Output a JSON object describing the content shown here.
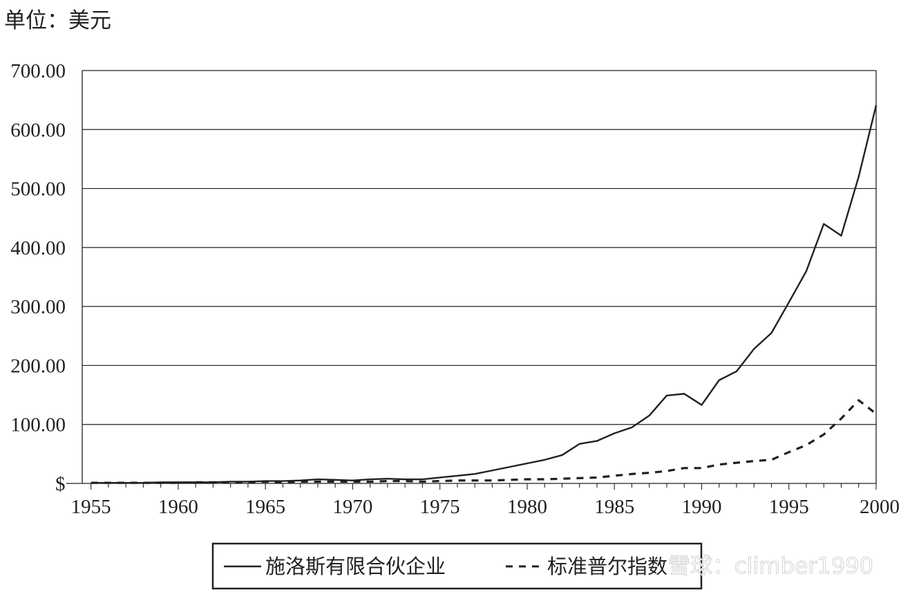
{
  "unit_label": "单位：美元",
  "watermark": "雪球：climber1990",
  "colors": {
    "ink": "#231f20",
    "grid": "#231f20",
    "background": "#ffffff"
  },
  "chart_data": {
    "type": "line",
    "title": "",
    "xlabel": "",
    "ylabel": "",
    "x": [
      1955,
      1956,
      1957,
      1958,
      1959,
      1960,
      1961,
      1962,
      1963,
      1964,
      1965,
      1966,
      1967,
      1968,
      1969,
      1970,
      1971,
      1972,
      1973,
      1974,
      1975,
      1976,
      1977,
      1978,
      1979,
      1980,
      1981,
      1982,
      1983,
      1984,
      1985,
      1986,
      1987,
      1988,
      1989,
      1990,
      1991,
      1992,
      1993,
      1994,
      1995,
      1996,
      1997,
      1998,
      1999,
      2000
    ],
    "xlim": [
      1954.5,
      2000
    ],
    "ylim": [
      0,
      700
    ],
    "yticks": [
      0,
      100,
      200,
      300,
      400,
      500,
      600,
      700
    ],
    "ytick_labels": [
      "$",
      "100.00",
      "200.00",
      "300.00",
      "400.00",
      "500.00",
      "600.00",
      "700.00"
    ],
    "xticks": [
      1955,
      1960,
      1965,
      1970,
      1975,
      1980,
      1985,
      1990,
      1995,
      2000
    ],
    "xtick_labels": [
      "1955",
      "1960",
      "1965",
      "1970",
      "1975",
      "1980",
      "1985",
      "1990",
      "1995",
      "2000"
    ],
    "grid": "horizontal",
    "legend_position": "bottom",
    "series": [
      {
        "name": "施洛斯有限合伙企业",
        "style": "solid",
        "values": [
          1,
          1,
          1,
          1,
          2,
          2,
          2,
          2,
          3,
          3,
          4,
          4,
          5,
          7,
          6,
          5,
          7,
          8,
          7,
          7,
          10,
          13,
          16,
          22,
          28,
          34,
          40,
          48,
          67,
          72,
          85,
          95,
          115,
          149,
          152,
          133,
          175,
          190,
          228,
          255,
          307,
          360,
          440,
          420,
          520,
          641
        ]
      },
      {
        "name": "标准普尔指数",
        "style": "dashed",
        "values": [
          1,
          1,
          1,
          1,
          1,
          1,
          2,
          2,
          2,
          2,
          3,
          2,
          3,
          3,
          3,
          3,
          3,
          4,
          4,
          3,
          4,
          5,
          5,
          5,
          6,
          7,
          7,
          8,
          9,
          10,
          13,
          16,
          18,
          21,
          26,
          26,
          32,
          35,
          38,
          40,
          53,
          65,
          83,
          110,
          141,
          118
        ]
      }
    ]
  }
}
